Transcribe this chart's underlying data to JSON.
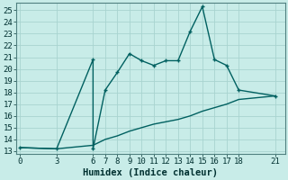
{
  "xlabel": "Humidex (Indice chaleur)",
  "background_color": "#c8ece8",
  "grid_color": "#a8d4d0",
  "line_color": "#006060",
  "x_ticks_labels": [
    "0",
    "3",
    "6",
    "7",
    "8",
    "9",
    "10",
    "11",
    "12",
    "13",
    "14",
    "15",
    "16",
    "17",
    "18",
    "21"
  ],
  "x_ticks_pos": [
    0,
    3,
    6,
    7,
    8,
    9,
    10,
    11,
    12,
    13,
    14,
    15,
    16,
    17,
    18,
    21
  ],
  "y_ticks": [
    13,
    14,
    15,
    16,
    17,
    18,
    19,
    20,
    21,
    22,
    23,
    24,
    25
  ],
  "ylim": [
    12.8,
    25.6
  ],
  "xlim": [
    -0.3,
    21.8
  ],
  "curve_x": [
    0,
    3,
    6,
    6,
    7,
    8,
    9,
    10,
    11,
    12,
    13,
    14,
    15,
    16,
    17,
    18,
    21
  ],
  "curve_y": [
    13.3,
    13.2,
    20.8,
    13.2,
    18.2,
    19.7,
    21.3,
    20.7,
    20.3,
    20.7,
    20.7,
    23.2,
    25.3,
    20.8,
    20.3,
    18.2,
    17.7
  ],
  "trend_x": [
    0,
    3,
    6,
    7,
    8,
    9,
    10,
    11,
    12,
    13,
    14,
    15,
    16,
    17,
    18,
    21
  ],
  "trend_y": [
    13.3,
    13.2,
    13.5,
    14.0,
    14.3,
    14.7,
    15.0,
    15.3,
    15.5,
    15.7,
    16.0,
    16.4,
    16.7,
    17.0,
    17.4,
    17.7
  ],
  "marker_size": 3.5,
  "line_width": 1.0,
  "font_size_ticks": 6.5,
  "font_size_label": 7.5
}
